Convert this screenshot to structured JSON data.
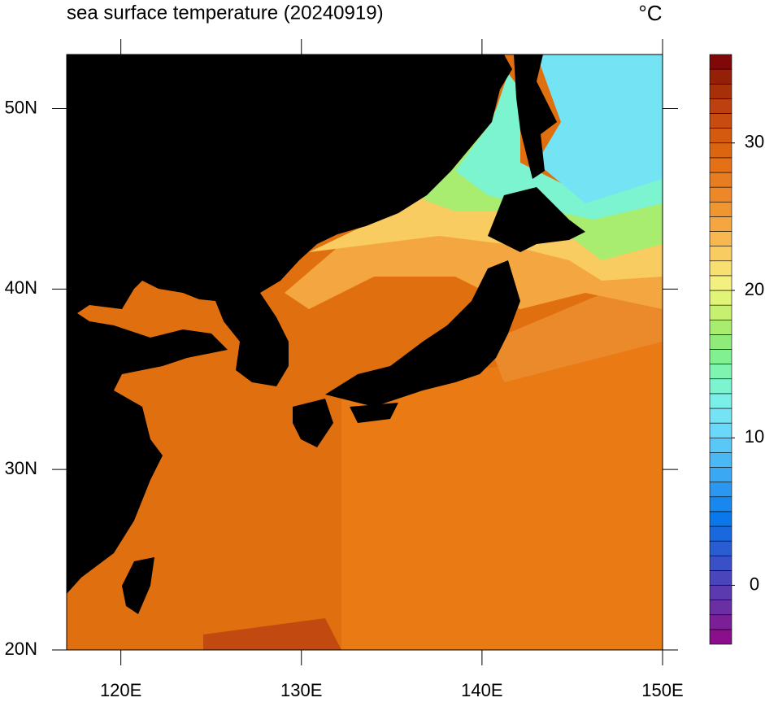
{
  "chart_data": {
    "type": "map",
    "title": "sea surface temperature (20240919)",
    "unit": "°C",
    "xlim": [
      117,
      150
    ],
    "ylim": [
      20,
      53
    ],
    "xticks": [
      {
        "value": 120,
        "label": "120E"
      },
      {
        "value": 130,
        "label": "130E"
      },
      {
        "value": 140,
        "label": "140E"
      },
      {
        "value": 150,
        "label": "150E"
      }
    ],
    "yticks": [
      {
        "value": 20,
        "label": "20N"
      },
      {
        "value": 30,
        "label": "30N"
      },
      {
        "value": 40,
        "label": "40N"
      },
      {
        "value": 50,
        "label": "50N"
      }
    ],
    "colorbar": {
      "lim": [
        -4,
        36
      ],
      "ticks": [
        0,
        10,
        20,
        30
      ],
      "colors": [
        "#8a0f8a",
        "#7a1f96",
        "#6a2fa2",
        "#5a3aae",
        "#4a45ba",
        "#3a50c6",
        "#2a5cd2",
        "#1a68de",
        "#0a78ea",
        "#1888ee",
        "#2a98f0",
        "#3aa8f2",
        "#4ab8f4",
        "#5ac8f6",
        "#6ad8f8",
        "#74e4f4",
        "#7af0e8",
        "#7cf4d0",
        "#7ef4b0",
        "#80f090",
        "#90ec7a",
        "#a8ec70",
        "#c8f070",
        "#e0f478",
        "#f4f080",
        "#f8e070",
        "#f8cc60",
        "#f8b850",
        "#f4a640",
        "#f09630",
        "#ec8828",
        "#e87c20",
        "#e47018",
        "#dc6610",
        "#d45a10",
        "#c84c10",
        "#bc4010",
        "#a83008",
        "#942008",
        "#800808"
      ]
    }
  }
}
